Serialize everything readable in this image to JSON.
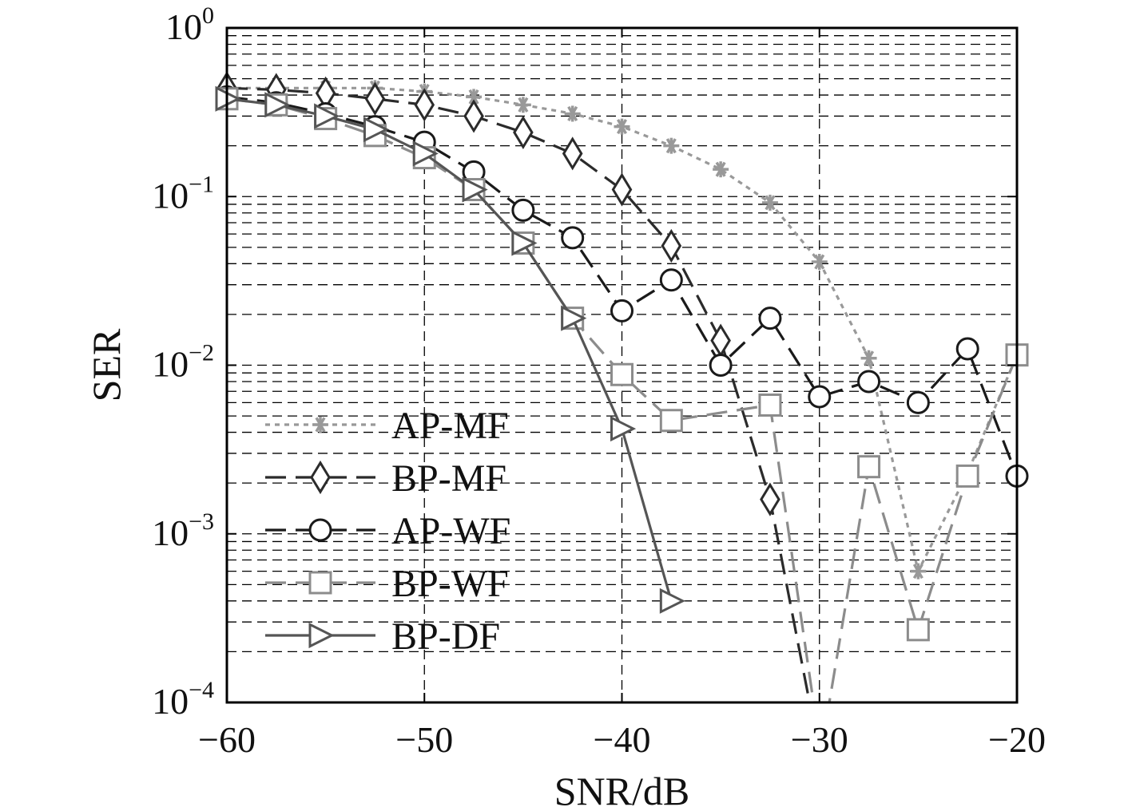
{
  "chart_data": {
    "type": "line",
    "title": "",
    "xlabel": "SNR/dB",
    "ylabel": "SER",
    "xlim": [
      -60,
      -20
    ],
    "ylim": [
      0.0001,
      1
    ],
    "yscale": "log",
    "grid": true,
    "legend_position": "bottom-left",
    "x_ticks": [
      {
        "value": -60,
        "label": "−60"
      },
      {
        "value": -50,
        "label": "−50"
      },
      {
        "value": -40,
        "label": "−40"
      },
      {
        "value": -30,
        "label": "−30"
      },
      {
        "value": -20,
        "label": "−20"
      }
    ],
    "y_ticks": [
      {
        "value": 1,
        "base": "10",
        "exp": "0"
      },
      {
        "value": 0.1,
        "base": "10",
        "exp": "−1"
      },
      {
        "value": 0.01,
        "base": "10",
        "exp": "−2"
      },
      {
        "value": 0.001,
        "base": "10",
        "exp": "−3"
      },
      {
        "value": 0.0001,
        "base": "10",
        "exp": "−4"
      }
    ],
    "series": [
      {
        "name": "AP-MF",
        "color": "#999999",
        "dash": "dotted",
        "marker": "star",
        "x": [
          -60,
          -57.5,
          -55,
          -52.5,
          -50,
          -47.5,
          -45,
          -42.5,
          -40,
          -37.5,
          -35,
          -32.5,
          -30,
          -27.5,
          -25,
          -22.5,
          -20
        ],
        "y": [
          0.44,
          0.44,
          0.44,
          0.44,
          0.42,
          0.39,
          0.35,
          0.31,
          0.26,
          0.2,
          0.145,
          0.092,
          0.041,
          0.011,
          0.0006,
          0.0023,
          0.0115
        ]
      },
      {
        "name": "BP-MF",
        "color": "#2b2b2b",
        "dash": "dashed",
        "marker": "diamond",
        "x": [
          -60,
          -57.5,
          -55,
          -52.5,
          -50,
          -47.5,
          -45,
          -42.5,
          -40,
          -37.5,
          -35,
          -32.5,
          -30.5
        ],
        "y": [
          0.44,
          0.43,
          0.41,
          0.38,
          0.35,
          0.3,
          0.24,
          0.18,
          0.11,
          0.051,
          0.014,
          0.0016,
          0.0001
        ]
      },
      {
        "name": "AP-WF",
        "color": "#1a1a1a",
        "dash": "dashed",
        "marker": "circle",
        "x": [
          -60,
          -57.5,
          -55,
          -52.5,
          -50,
          -47.5,
          -45,
          -42.5,
          -40,
          -37.5,
          -35,
          -32.5,
          -30,
          -27.5,
          -25,
          -22.5,
          -20
        ],
        "y": [
          0.39,
          0.36,
          0.31,
          0.26,
          0.21,
          0.14,
          0.083,
          0.057,
          0.021,
          0.032,
          0.01,
          0.019,
          0.0065,
          0.008,
          0.006,
          0.0125,
          0.0022
        ]
      },
      {
        "name": "BP-WF",
        "color": "#8c8c8c",
        "dash": "dashed",
        "marker": "square",
        "x": [
          -60,
          -57.5,
          -55,
          -52.5,
          -50,
          -47.5,
          -45,
          -42.5,
          -40,
          -37.5,
          -32.5,
          -30.3,
          -29.5,
          -27.5,
          -25,
          -22.5,
          -20
        ],
        "y": [
          0.38,
          0.35,
          0.29,
          0.23,
          0.17,
          0.11,
          0.053,
          0.019,
          0.0088,
          0.0047,
          0.0058,
          0.0001,
          0.0001,
          0.0025,
          0.00027,
          0.0022,
          0.0115
        ]
      },
      {
        "name": "BP-DF",
        "color": "#555555",
        "dash": "solid",
        "marker": "triangle-right",
        "x": [
          -60,
          -57.5,
          -55,
          -52.5,
          -50,
          -47.5,
          -45,
          -42.5,
          -40,
          -37.5
        ],
        "y": [
          0.38,
          0.35,
          0.3,
          0.25,
          0.18,
          0.11,
          0.053,
          0.019,
          0.0042,
          0.0004
        ]
      }
    ]
  }
}
